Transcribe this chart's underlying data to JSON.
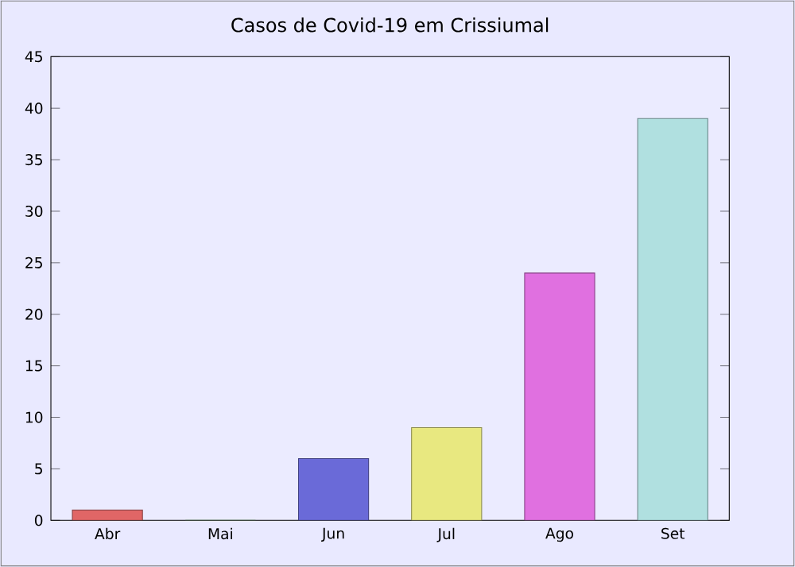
{
  "chart_data": {
    "type": "bar",
    "title": "Casos de Covid-19 em Crissiumal",
    "categories": [
      "Abr",
      "Mai",
      "Jun",
      "Jul",
      "Ago",
      "Set"
    ],
    "values": [
      1,
      0,
      6,
      9,
      24,
      39
    ],
    "colors": [
      "#e06666",
      "#80e080",
      "#6a6ad8",
      "#e8e880",
      "#e070e0",
      "#b0e0e0"
    ],
    "ylim": [
      0,
      45
    ],
    "yticks": [
      0,
      5,
      10,
      15,
      20,
      25,
      30,
      35,
      40,
      45
    ]
  }
}
